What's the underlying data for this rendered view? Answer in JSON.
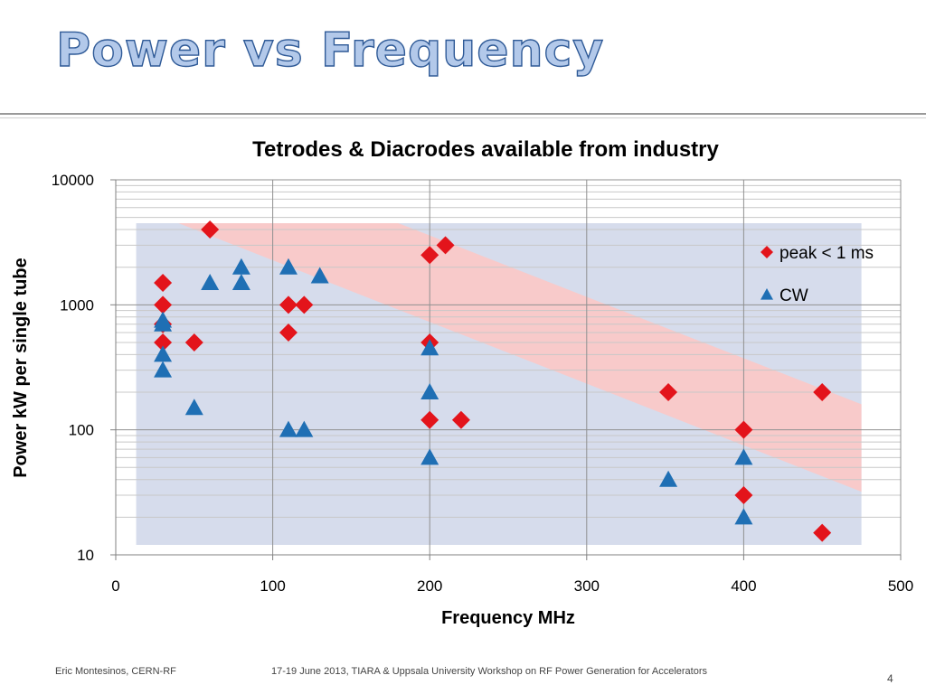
{
  "slide": {
    "title": "Power vs Frequency",
    "footer_author": "Eric Montesinos, CERN-RF",
    "footer_event": "17-19 June 2013, TIARA & Uppsala University Workshop on RF Power Generation for Accelerators",
    "page_number": "4"
  },
  "chart_data": {
    "type": "scatter",
    "title": "Tetrodes & Diacrodes available from industry",
    "xlabel": "Frequency MHz",
    "ylabel": "Power kW per single tube",
    "xlim": [
      0,
      500
    ],
    "ylim": [
      10,
      10000
    ],
    "y_scale": "log",
    "x_ticks": [
      "0",
      "100",
      "200",
      "300",
      "400",
      "500"
    ],
    "y_ticks": [
      "10",
      "100",
      "1000",
      "10000"
    ],
    "grid": true,
    "legend_position": "top-right",
    "colors": {
      "peak": "#e3141b",
      "cw": "#1f6fb4",
      "peak_region": "#fcc8c6",
      "cw_region": "#d6dcec",
      "grid_major": "#909090",
      "grid_minor": "#c8c8c8"
    },
    "series": [
      {
        "name": "peak < 1 ms",
        "marker": "diamond",
        "points": [
          [
            30,
            1500
          ],
          [
            30,
            1000
          ],
          [
            30,
            700
          ],
          [
            30,
            500
          ],
          [
            50,
            500
          ],
          [
            60,
            4000
          ],
          [
            110,
            1000
          ],
          [
            120,
            1000
          ],
          [
            110,
            600
          ],
          [
            200,
            2500
          ],
          [
            210,
            3000
          ],
          [
            200,
            500
          ],
          [
            200,
            120
          ],
          [
            220,
            120
          ],
          [
            352,
            200
          ],
          [
            400,
            100
          ],
          [
            400,
            30
          ],
          [
            450,
            200
          ],
          [
            450,
            15
          ]
        ]
      },
      {
        "name": "CW",
        "marker": "triangle",
        "points": [
          [
            30,
            750
          ],
          [
            30,
            700
          ],
          [
            30,
            400
          ],
          [
            30,
            300
          ],
          [
            50,
            150
          ],
          [
            60,
            1500
          ],
          [
            80,
            2000
          ],
          [
            80,
            1500
          ],
          [
            110,
            2000
          ],
          [
            130,
            1700
          ],
          [
            110,
            100
          ],
          [
            120,
            100
          ],
          [
            200,
            450
          ],
          [
            200,
            200
          ],
          [
            200,
            60
          ],
          [
            352,
            40
          ],
          [
            400,
            60
          ],
          [
            400,
            20
          ]
        ]
      }
    ],
    "regions": [
      {
        "name": "cw_region",
        "polygon": [
          [
            13,
            4500
          ],
          [
            475,
            4500
          ],
          [
            475,
            12
          ],
          [
            13,
            12
          ]
        ]
      },
      {
        "name": "peak_region",
        "polygon": [
          [
            40,
            4500
          ],
          [
            180,
            4500
          ],
          [
            475,
            160
          ],
          [
            475,
            32
          ]
        ]
      }
    ]
  }
}
